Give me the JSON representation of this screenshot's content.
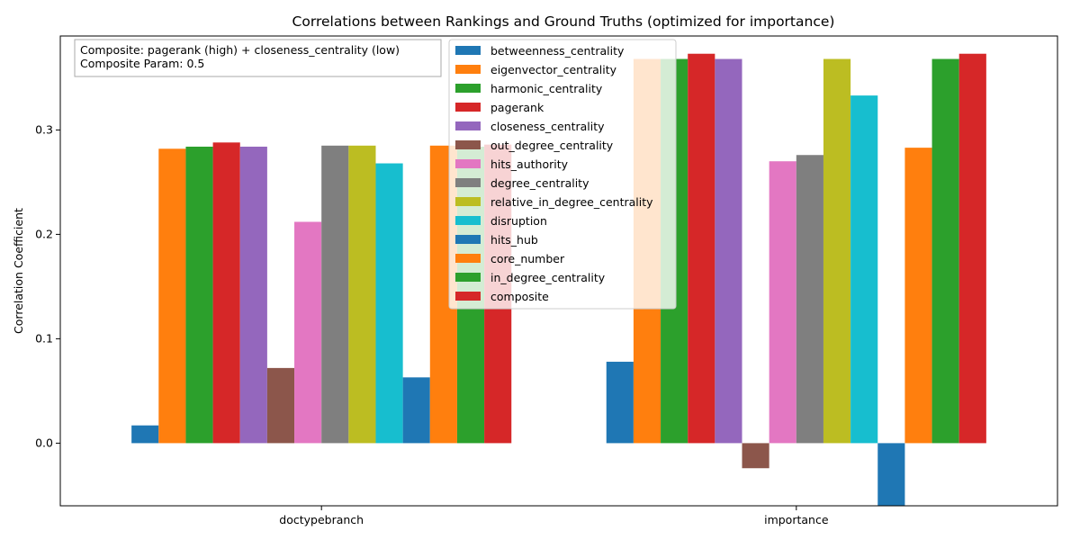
{
  "chart_data": {
    "type": "bar",
    "title": "Correlations between Rankings and Ground Truths (optimized for importance)",
    "xlabel": "",
    "ylabel": "Correlation Coefficient",
    "categories": [
      "doctypebranch",
      "importance"
    ],
    "ylim": [
      -0.06,
      0.39
    ],
    "yticks": [
      0.0,
      0.1,
      0.2,
      0.3
    ],
    "ytick_labels": [
      "0.0",
      "0.1",
      "0.2",
      "0.3"
    ],
    "grid": false,
    "legend_position": "upper center",
    "annotation": {
      "line1": "Composite: pagerank (high) + closeness_centrality (low)",
      "line2": "Composite Param: 0.5"
    },
    "series": [
      {
        "name": "betweenness_centrality",
        "color": "#1f77b4",
        "values": [
          0.017,
          0.078
        ]
      },
      {
        "name": "eigenvector_centrality",
        "color": "#ff7f0e",
        "values": [
          0.282,
          0.368
        ]
      },
      {
        "name": "harmonic_centrality",
        "color": "#2ca02c",
        "values": [
          0.284,
          0.368
        ]
      },
      {
        "name": "pagerank",
        "color": "#d62728",
        "values": [
          0.288,
          0.373
        ]
      },
      {
        "name": "closeness_centrality",
        "color": "#9467bd",
        "values": [
          0.284,
          0.368
        ]
      },
      {
        "name": "out_degree_centrality",
        "color": "#8c564b",
        "values": [
          0.072,
          -0.024
        ]
      },
      {
        "name": "hits_authority",
        "color": "#e377c2",
        "values": [
          0.212,
          0.27
        ]
      },
      {
        "name": "degree_centrality",
        "color": "#7f7f7f",
        "values": [
          0.285,
          0.276
        ]
      },
      {
        "name": "relative_in_degree_centrality",
        "color": "#bcbd22",
        "values": [
          0.285,
          0.368
        ]
      },
      {
        "name": "disruption",
        "color": "#17becf",
        "values": [
          0.268,
          0.333
        ]
      },
      {
        "name": "hits_hub",
        "color": "#1f77b4",
        "values": [
          0.063,
          -0.06
        ]
      },
      {
        "name": "core_number",
        "color": "#ff7f0e",
        "values": [
          0.285,
          0.283
        ]
      },
      {
        "name": "in_degree_centrality",
        "color": "#2ca02c",
        "values": [
          0.284,
          0.368
        ]
      },
      {
        "name": "composite",
        "color": "#d62728",
        "values": [
          0.286,
          0.373
        ]
      }
    ]
  }
}
